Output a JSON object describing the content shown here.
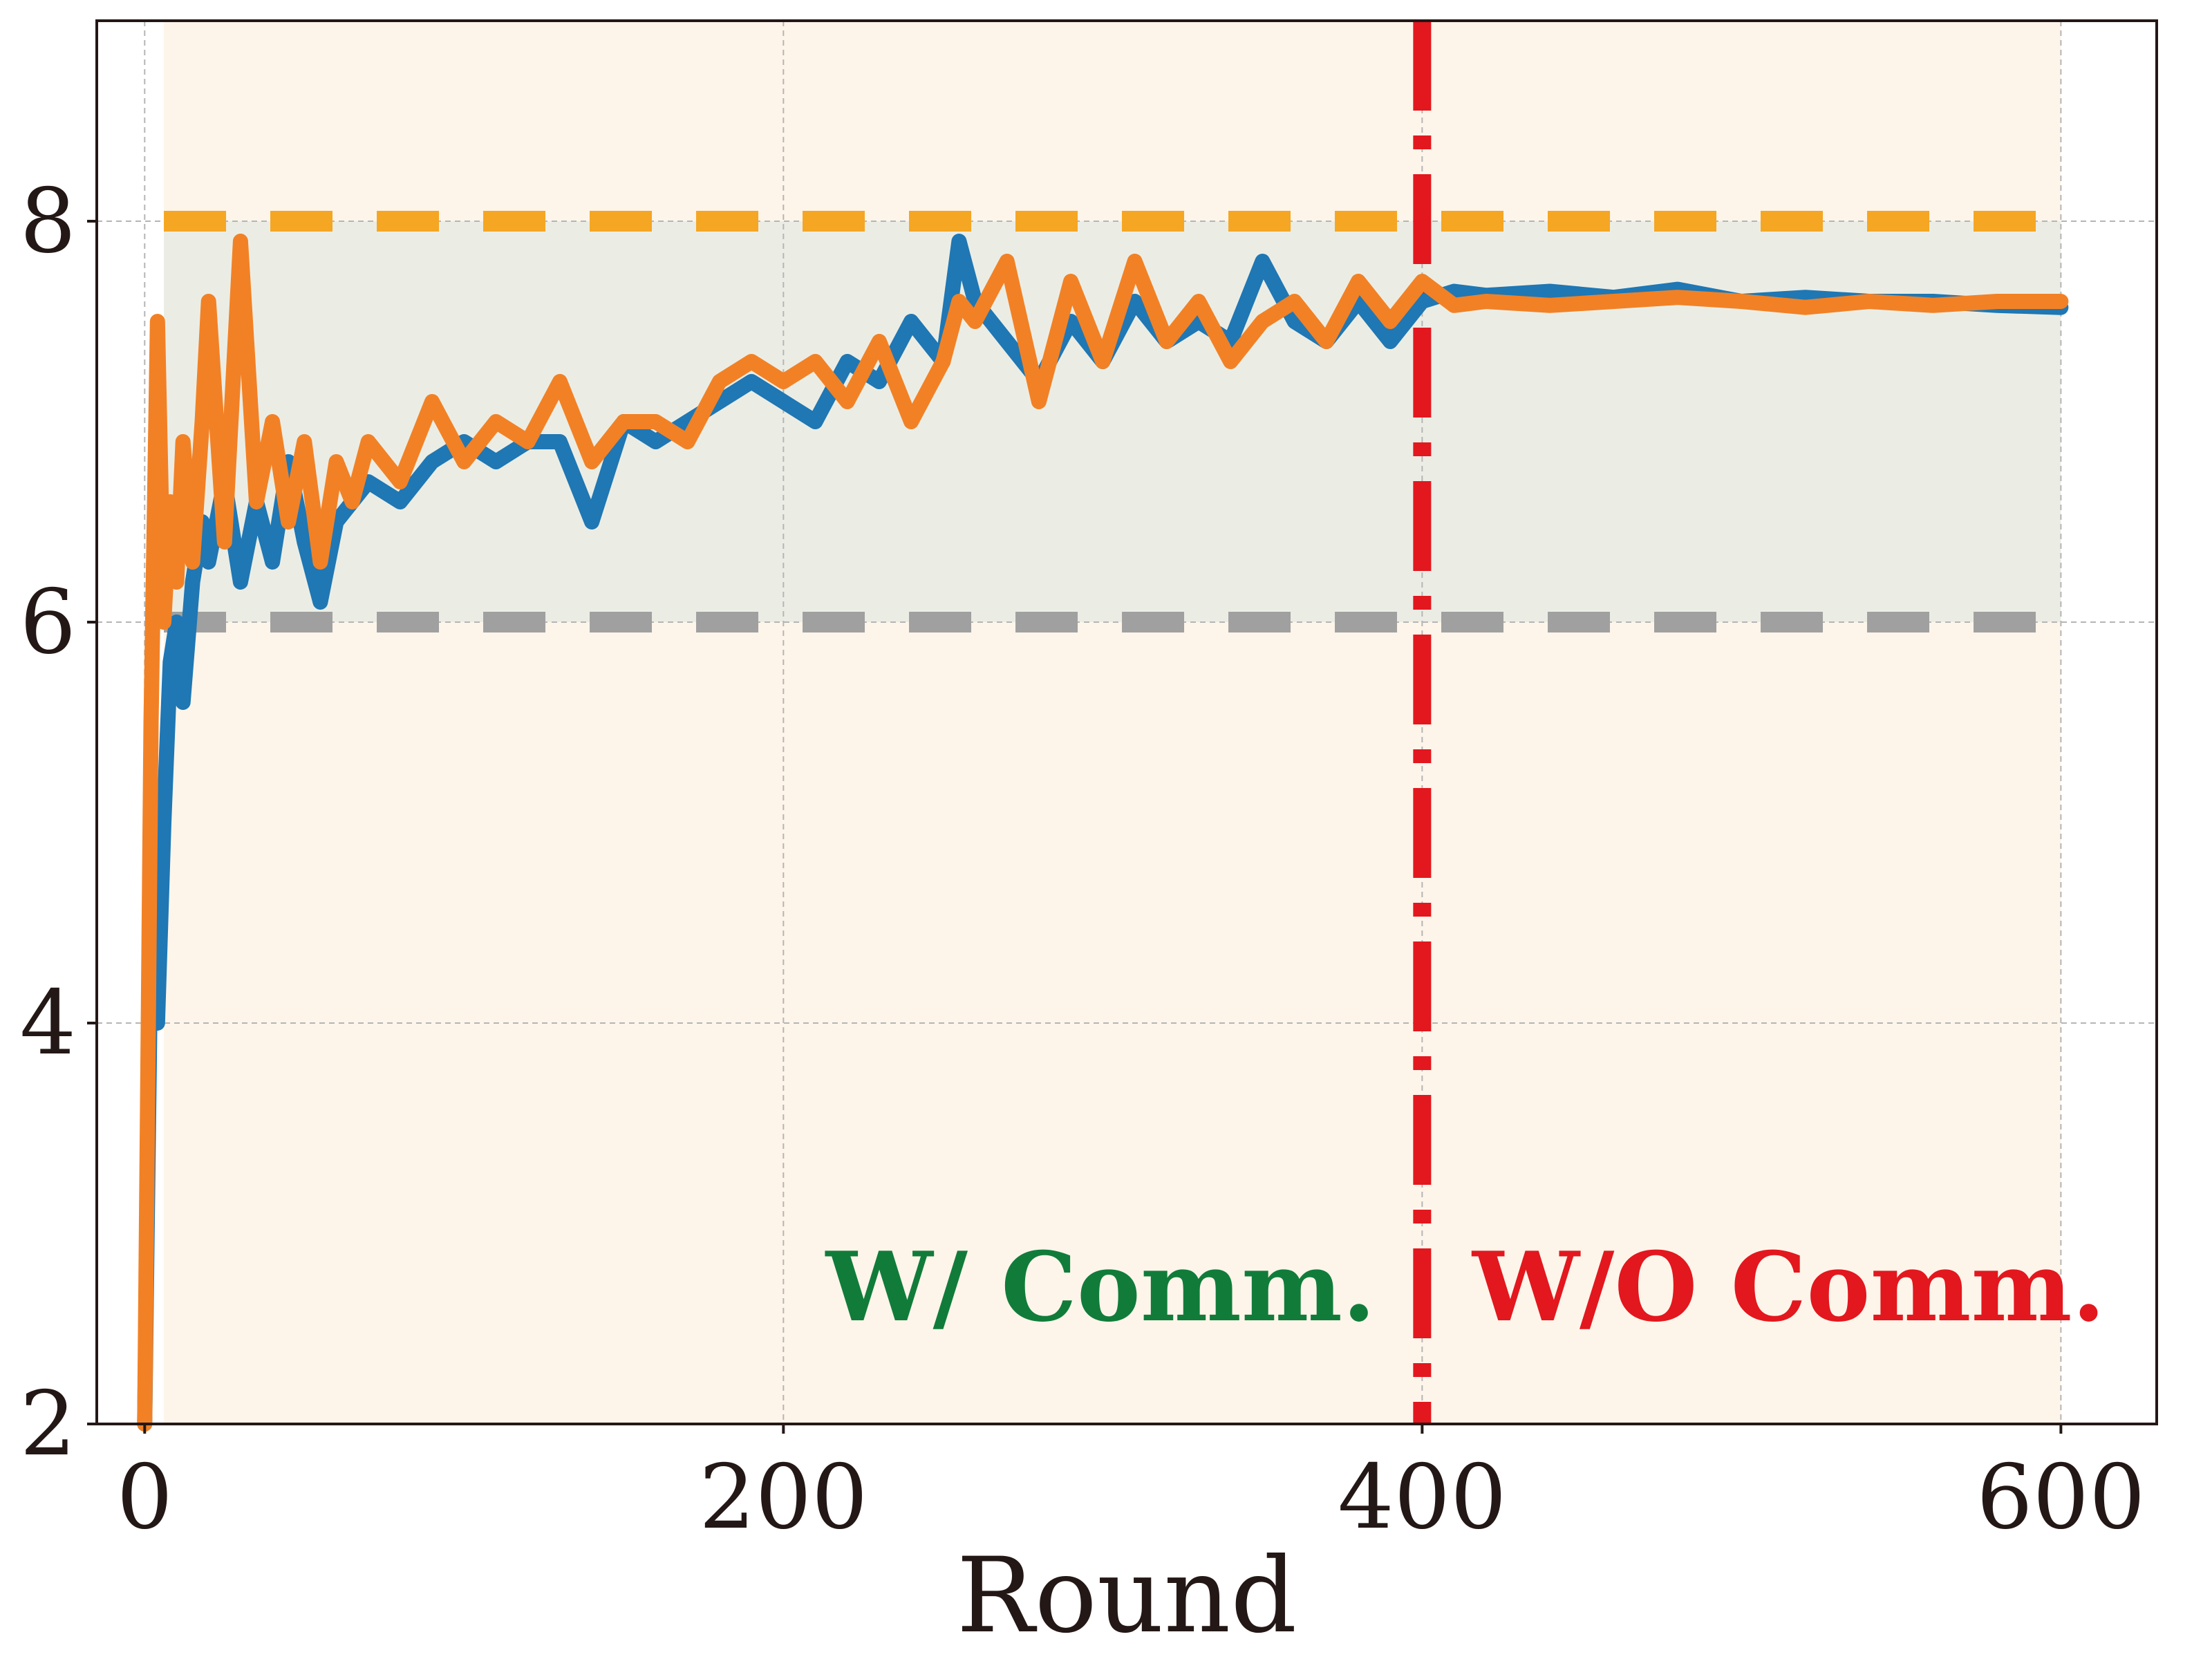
{
  "chart_data": {
    "type": "line",
    "xlabel": "Round",
    "ylabel": "",
    "xlim": [
      -15,
      630
    ],
    "ylim": [
      2,
      9
    ],
    "xticks": [
      "0",
      "200",
      "400",
      "600"
    ],
    "yticks": [
      "2",
      "4",
      "6",
      "8"
    ],
    "grid": true,
    "legend": "none",
    "reference_lines": [
      {
        "axis": "y",
        "value": 8,
        "style": "dashed",
        "color": "#f5a623"
      },
      {
        "axis": "y",
        "value": 6,
        "style": "dashed",
        "color": "#a0a0a0"
      },
      {
        "axis": "x",
        "value": 400,
        "style": "dash-dot",
        "color": "#e3171e"
      }
    ],
    "shaded_regions": [
      {
        "x": [
          6,
          600
        ],
        "y": [
          2,
          9
        ],
        "color": "#fdf5ea"
      },
      {
        "x": [
          6,
          600
        ],
        "y": [
          6,
          8
        ],
        "color": "#ebede5"
      }
    ],
    "annotations": [
      {
        "text": "W/ Comm.",
        "color": "#117c3a"
      },
      {
        "text": "W/O Comm.",
        "color": "#e3171e"
      }
    ],
    "series": [
      {
        "color": "#1f77b4",
        "x": [
          0,
          2,
          4,
          6,
          8,
          10,
          12,
          15,
          18,
          20,
          25,
          30,
          35,
          40,
          45,
          50,
          55,
          60,
          65,
          70,
          80,
          90,
          100,
          110,
          120,
          130,
          140,
          150,
          160,
          170,
          180,
          190,
          200,
          210,
          220,
          230,
          240,
          250,
          255,
          260,
          270,
          280,
          290,
          300,
          310,
          320,
          330,
          340,
          350,
          360,
          370,
          380,
          390,
          400,
          410,
          420,
          440,
          460,
          480,
          500,
          520,
          540,
          560,
          580,
          600
        ],
        "y": [
          2.0,
          4.5,
          4.0,
          5.0,
          5.8,
          6.0,
          5.6,
          6.2,
          6.5,
          6.3,
          6.7,
          6.2,
          6.6,
          6.3,
          6.8,
          6.4,
          6.1,
          6.5,
          6.6,
          6.7,
          6.6,
          6.8,
          6.9,
          6.8,
          6.9,
          6.9,
          6.5,
          7.0,
          6.9,
          7.0,
          7.1,
          7.2,
          7.1,
          7.0,
          7.3,
          7.2,
          7.5,
          7.3,
          7.9,
          7.6,
          7.4,
          7.2,
          7.5,
          7.3,
          7.6,
          7.4,
          7.5,
          7.4,
          7.8,
          7.5,
          7.4,
          7.6,
          7.4,
          7.6,
          7.65,
          7.63,
          7.65,
          7.62,
          7.66,
          7.6,
          7.62,
          7.6,
          7.6,
          7.58,
          7.57
        ]
      },
      {
        "color": "#f28125",
        "x": [
          0,
          2,
          4,
          6,
          8,
          10,
          12,
          15,
          18,
          20,
          25,
          30,
          35,
          40,
          45,
          50,
          55,
          60,
          65,
          70,
          80,
          90,
          100,
          110,
          120,
          130,
          140,
          150,
          160,
          170,
          180,
          190,
          200,
          210,
          220,
          230,
          240,
          250,
          255,
          260,
          270,
          280,
          290,
          300,
          310,
          320,
          330,
          340,
          350,
          360,
          370,
          380,
          390,
          400,
          410,
          420,
          440,
          460,
          480,
          500,
          520,
          540,
          560,
          580,
          600
        ],
        "y": [
          2.0,
          5.5,
          7.5,
          6.0,
          6.6,
          6.2,
          6.9,
          6.3,
          7.0,
          7.6,
          6.4,
          7.9,
          6.6,
          7.0,
          6.5,
          6.9,
          6.3,
          6.8,
          6.6,
          6.9,
          6.7,
          7.1,
          6.8,
          7.0,
          6.9,
          7.2,
          6.8,
          7.0,
          7.0,
          6.9,
          7.2,
          7.3,
          7.2,
          7.3,
          7.1,
          7.4,
          7.0,
          7.3,
          7.6,
          7.5,
          7.8,
          7.1,
          7.7,
          7.3,
          7.8,
          7.4,
          7.6,
          7.3,
          7.5,
          7.6,
          7.4,
          7.7,
          7.5,
          7.7,
          7.58,
          7.6,
          7.58,
          7.6,
          7.62,
          7.6,
          7.57,
          7.6,
          7.58,
          7.6,
          7.6
        ]
      }
    ]
  }
}
